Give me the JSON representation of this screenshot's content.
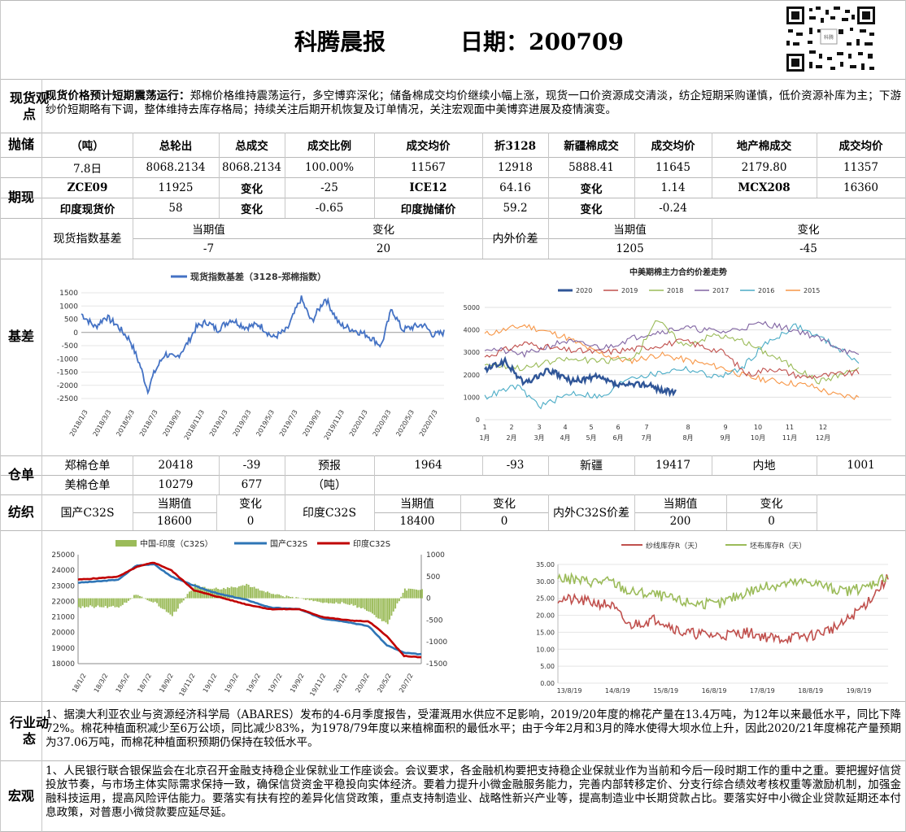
{
  "header": {
    "title": "科腾晨报",
    "date_label": "日期：200709"
  },
  "sections": {
    "spot": "现货观点",
    "reserve": "抛储",
    "futures": "期现",
    "basis": "基差",
    "warehouse": "仓单",
    "yarn": "纺织",
    "industry": "行业动态",
    "macro": "宏观"
  },
  "spot_view": {
    "heading": "现货价格预计短期震荡运行：",
    "text": "郑棉价格维持震荡运行，多空博弈深化；储备棉成交均价继续小幅上涨，现货一口价资源成交清淡，纺企短期采购谨慎，低价资源补库为主；下游纱价短期略有下调，整体维持去库存格局；持续关注后期开机恢复及订单情况，关注宏观面中美博弈进展及疫情演变。"
  },
  "reserve_table": {
    "headers": [
      "（吨）",
      "总轮出",
      "总成交",
      "成交比例",
      "成交均价",
      "折3128",
      "新疆棉成交",
      "成交均价",
      "地产棉成交",
      "成交均价"
    ],
    "row": [
      "7.8日",
      "8068.2134",
      "8068.2134",
      "100.00%",
      "11567",
      "12918",
      "5888.41",
      "11645",
      "2179.80",
      "11357"
    ]
  },
  "futures_table": {
    "row1": [
      "ZCE09",
      "11925",
      "变化",
      "-25",
      "ICE12",
      "64.16",
      "变化",
      "1.14",
      "MCX208",
      "16360"
    ],
    "row2": [
      "印度现货价",
      "58",
      "变化",
      "-0.65",
      "印度抛储价",
      "59.2",
      "变化",
      "-0.24"
    ]
  },
  "basis_table": {
    "cur_label": "当期值",
    "chg_label": "变化",
    "name1": "现货指数基差",
    "cur1": "-7",
    "chg1": "20",
    "name2": "内外价差",
    "cur2": "1205",
    "chg2": "-45"
  },
  "warehouse_table": {
    "row1": [
      "郑棉仓单",
      "20418",
      "-39",
      "预报",
      "1964",
      "-93",
      "新疆",
      "19417",
      "内地",
      "1001"
    ],
    "row2": [
      "美棉仓单",
      "10279",
      "677",
      "（吨）"
    ]
  },
  "yarn_table": {
    "cur_label": "当期值",
    "chg_label": "变化",
    "items": [
      {
        "name": "国产C32S",
        "cur": "18600",
        "chg": "0"
      },
      {
        "name": "印度C32S",
        "cur": "18400",
        "chg": "0"
      },
      {
        "name": "内外C32S价差",
        "cur": "200",
        "chg": "0"
      }
    ]
  },
  "industry": {
    "text": "1、据澳大利亚农业与资源经济科学局（ABARES）发布的4-6月季度报告，受灌溉用水供应不足影响，2019/20年度的棉花产量在13.4万吨，为12年以来最低水平，同比下降72%。棉花种植面积减少至6万公顷，同比减少83%，为1978/79年度以来植棉面积的最低水平；由于今年2月和3月的降水使得大坝水位上升，因此2020/21年度棉花产量预期为37.06万吨，而棉花种植面积预期仍保持在较低水平。"
  },
  "macro": {
    "text": "1、人民银行联合银保监会在北京召开金融支持稳企业保就业工作座谈会。会议要求，各金融机构要把支持稳企业保就业作为当前和今后一段时期工作的重中之重。要把握好信贷投放节奏，与市场主体实际需求保持一致，确保信贷资金平稳投向实体经济。要着力提升小微金融服务能力，完善内部转移定价、分支行综合绩效考核权重等激励机制，加强金融科技运用，提高风险评估能力。要落实有扶有控的差异化信贷政策，重点支持制造业、战略性新兴产业等，提高制造业中长期贷款占比。要落实好中小微企业贷款延期还本付息政策，对普惠小微贷款要应延尽延。"
  },
  "chart_data": [
    {
      "type": "line",
      "title": "",
      "series": [
        {
          "name": "现货指数基差（3128-郑棉指数）",
          "color": "#4472c4",
          "points": [
            [
              0,
              700
            ],
            [
              4,
              200
            ],
            [
              7,
              600
            ],
            [
              10,
              300
            ],
            [
              14,
              -300
            ],
            [
              17,
              -1300
            ],
            [
              19,
              -2200
            ],
            [
              21,
              -1500
            ],
            [
              24,
              -800
            ],
            [
              27,
              -1000
            ],
            [
              30,
              -500
            ],
            [
              33,
              200
            ],
            [
              36,
              400
            ],
            [
              39,
              100
            ],
            [
              43,
              500
            ],
            [
              47,
              200
            ],
            [
              51,
              300
            ],
            [
              55,
              -200
            ],
            [
              59,
              100
            ],
            [
              63,
              1300
            ],
            [
              66,
              400
            ],
            [
              70,
              1300
            ],
            [
              74,
              300
            ],
            [
              78,
              100
            ],
            [
              82,
              -100
            ],
            [
              86,
              -500
            ],
            [
              89,
              900
            ],
            [
              92,
              100
            ],
            [
              95,
              200
            ],
            [
              98,
              300
            ],
            [
              101,
              -100
            ],
            [
              104,
              0
            ]
          ]
        }
      ],
      "yticks": [
        "1500",
        "1000",
        "500",
        "0",
        "-500",
        "-1000",
        "-1500",
        "-2000",
        "-2500"
      ],
      "ylim": [
        -2500,
        1500
      ],
      "xticks": [
        "2018/1/3",
        "2018/3/3",
        "2018/5/3",
        "2018/7/3",
        "2018/9/3",
        "2018/11/3",
        "2019/1/3",
        "2019/3/3",
        "2019/5/3",
        "2019/7/3",
        "2019/9/3",
        "2019/11/3",
        "2020/1/3",
        "2020/3/3",
        "2020/5/3",
        "2020/7/3"
      ]
    },
    {
      "type": "line",
      "title": "中美期棉主力合约价差走势",
      "yticks": [
        "5000",
        "4000",
        "3000",
        "2000",
        "1000",
        "0"
      ],
      "ylim": [
        0,
        5000
      ],
      "xticks": [
        "1月",
        "2月",
        "3月",
        "4月",
        "5月",
        "6月",
        "7月",
        "8月",
        "9月",
        "10月",
        "11月",
        "12月"
      ],
      "series": [
        {
          "name": "2020",
          "color": "#2f5597",
          "points": [
            [
              0,
              2200
            ],
            [
              5,
              2600
            ],
            [
              10,
              1600
            ],
            [
              16,
              2200
            ],
            [
              22,
              1700
            ],
            [
              28,
              1900
            ],
            [
              34,
              1500
            ],
            [
              40,
              1600
            ],
            [
              45,
              1300
            ],
            [
              48,
              1200
            ]
          ]
        },
        {
          "name": "2019",
          "color": "#c0504d",
          "points": [
            [
              0,
              2800
            ],
            [
              10,
              3400
            ],
            [
              20,
              3100
            ],
            [
              30,
              3000
            ],
            [
              40,
              3200
            ],
            [
              50,
              3500
            ],
            [
              60,
              3000
            ],
            [
              66,
              2000
            ],
            [
              72,
              2300
            ],
            [
              80,
              1900
            ],
            [
              88,
              2000
            ],
            [
              94,
              2100
            ]
          ]
        },
        {
          "name": "2018",
          "color": "#9bbb59",
          "points": [
            [
              0,
              2500
            ],
            [
              10,
              2300
            ],
            [
              20,
              2700
            ],
            [
              30,
              2600
            ],
            [
              38,
              2800
            ],
            [
              43,
              4500
            ],
            [
              50,
              3300
            ],
            [
              58,
              3800
            ],
            [
              66,
              3400
            ],
            [
              74,
              2700
            ],
            [
              84,
              1700
            ],
            [
              94,
              2300
            ]
          ]
        },
        {
          "name": "2017",
          "color": "#8064a2",
          "points": [
            [
              0,
              3200
            ],
            [
              10,
              2900
            ],
            [
              20,
              3500
            ],
            [
              30,
              3200
            ],
            [
              40,
              3800
            ],
            [
              50,
              4100
            ],
            [
              60,
              3900
            ],
            [
              70,
              4300
            ],
            [
              80,
              3900
            ],
            [
              88,
              3300
            ],
            [
              94,
              2800
            ]
          ]
        },
        {
          "name": "2016",
          "color": "#4bacc6",
          "points": [
            [
              0,
              1000
            ],
            [
              8,
              1500
            ],
            [
              14,
              600
            ],
            [
              22,
              1200
            ],
            [
              30,
              1000
            ],
            [
              36,
              1900
            ],
            [
              42,
              2000
            ],
            [
              50,
              2300
            ],
            [
              58,
              1900
            ],
            [
              64,
              2200
            ],
            [
              70,
              3300
            ],
            [
              78,
              4200
            ],
            [
              86,
              3500
            ],
            [
              94,
              2600
            ]
          ]
        },
        {
          "name": "2015",
          "color": "#f79646",
          "points": [
            [
              0,
              3800
            ],
            [
              10,
              4200
            ],
            [
              20,
              3700
            ],
            [
              28,
              3000
            ],
            [
              36,
              2600
            ],
            [
              44,
              2900
            ],
            [
              52,
              2600
            ],
            [
              60,
              2300
            ],
            [
              66,
              1900
            ],
            [
              74,
              1700
            ],
            [
              82,
              1500
            ],
            [
              88,
              1100
            ],
            [
              94,
              1000
            ]
          ]
        }
      ]
    },
    {
      "type": "bar+line",
      "title": "",
      "series": [
        {
          "name": "中国-印度（C32S）",
          "color": "#9bbb59",
          "axis": "right"
        },
        {
          "name": "国产C32S",
          "color": "#2e75b6",
          "axis": "left",
          "points": [
            [
              0,
              23200
            ],
            [
              8,
              23300
            ],
            [
              14,
              23400
            ],
            [
              20,
              24300
            ],
            [
              26,
              24400
            ],
            [
              32,
              23600
            ],
            [
              40,
              23000
            ],
            [
              48,
              22500
            ],
            [
              58,
              22100
            ],
            [
              66,
              21600
            ],
            [
              76,
              21500
            ],
            [
              84,
              20900
            ],
            [
              92,
              20700
            ],
            [
              100,
              20400
            ],
            [
              106,
              19200
            ],
            [
              112,
              18700
            ],
            [
              118,
              18600
            ]
          ]
        },
        {
          "name": "印度C32S",
          "color": "#c00000",
          "axis": "left",
          "points": [
            [
              0,
              23400
            ],
            [
              8,
              23500
            ],
            [
              14,
              23600
            ],
            [
              20,
              24200
            ],
            [
              26,
              24500
            ],
            [
              32,
              24000
            ],
            [
              40,
              22700
            ],
            [
              48,
              22300
            ],
            [
              58,
              21800
            ],
            [
              66,
              21500
            ],
            [
              76,
              21500
            ],
            [
              84,
              21000
            ],
            [
              92,
              20800
            ],
            [
              100,
              20700
            ],
            [
              106,
              19800
            ],
            [
              112,
              18500
            ],
            [
              118,
              18400
            ]
          ]
        }
      ],
      "yticks_left": [
        "25000",
        "24000",
        "23000",
        "22000",
        "21000",
        "20000",
        "19000",
        "18000"
      ],
      "yticks_right": [
        "1000",
        "500",
        "0",
        "-500",
        "-1000",
        "-1500"
      ],
      "xticks": [
        "18/1/2",
        "18/3/2",
        "18/5/2",
        "18/7/2",
        "18/9/2",
        "18/11/2",
        "19/1/2",
        "19/3/2",
        "19/5/2",
        "19/7/2",
        "19/9/2",
        "19/11/2",
        "20/1/2",
        "20/3/2",
        "20/5/2",
        "20/7/2"
      ]
    },
    {
      "type": "line",
      "title": "",
      "series": [
        {
          "name": "纱线库存R（天）",
          "color": "#c0504d",
          "points": [
            [
              0,
              25
            ],
            [
              10,
              24
            ],
            [
              18,
              23
            ],
            [
              24,
              17
            ],
            [
              34,
              19
            ],
            [
              42,
              15
            ],
            [
              54,
              14
            ],
            [
              64,
              15
            ],
            [
              74,
              13
            ],
            [
              86,
              14
            ],
            [
              96,
              17
            ],
            [
              104,
              23
            ],
            [
              112,
              31
            ]
          ]
        },
        {
          "name": "坯布库存R（天）",
          "color": "#9bbb59",
          "points": [
            [
              0,
              31
            ],
            [
              10,
              30
            ],
            [
              18,
              30
            ],
            [
              24,
              27
            ],
            [
              34,
              26
            ],
            [
              42,
              24
            ],
            [
              54,
              23
            ],
            [
              64,
              27
            ],
            [
              74,
              29
            ],
            [
              86,
              30
            ],
            [
              96,
              27
            ],
            [
              104,
              28
            ],
            [
              112,
              32
            ]
          ]
        }
      ],
      "yticks": [
        "35.00",
        "30.00",
        "25.00",
        "20.00",
        "15.00",
        "10.00",
        "5.00",
        "0.00"
      ],
      "ylim": [
        0,
        35
      ],
      "xticks": [
        "13/8/19",
        "14/8/19",
        "15/8/19",
        "16/8/19",
        "17/8/19",
        "18/8/19",
        "19/8/19"
      ]
    }
  ]
}
